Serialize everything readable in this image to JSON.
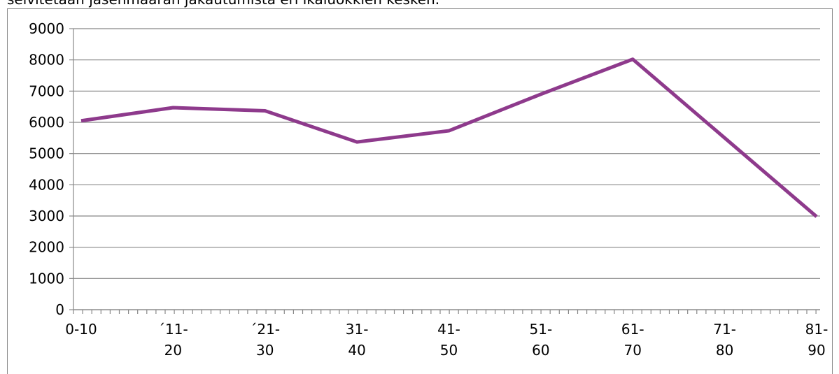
{
  "caption": "selvitetään jäsenmäärän jakautumista eri ikäluokkien kesken.",
  "chart_data": {
    "type": "line",
    "categories": [
      "0-10",
      "´11-\n20",
      "´21-\n30",
      "31-\n40",
      "41-\n50",
      "51-\n60",
      "61-\n70",
      "71-\n80",
      "81-\n90"
    ],
    "values": [
      6050,
      6470,
      6370,
      5370,
      5730,
      6900,
      8020,
      5500,
      2980
    ],
    "color": "#8e3a8c",
    "ylim": [
      0,
      9000
    ],
    "yticks": [
      0,
      1000,
      2000,
      3000,
      4000,
      5000,
      6000,
      7000,
      8000,
      9000
    ],
    "grid": true
  }
}
